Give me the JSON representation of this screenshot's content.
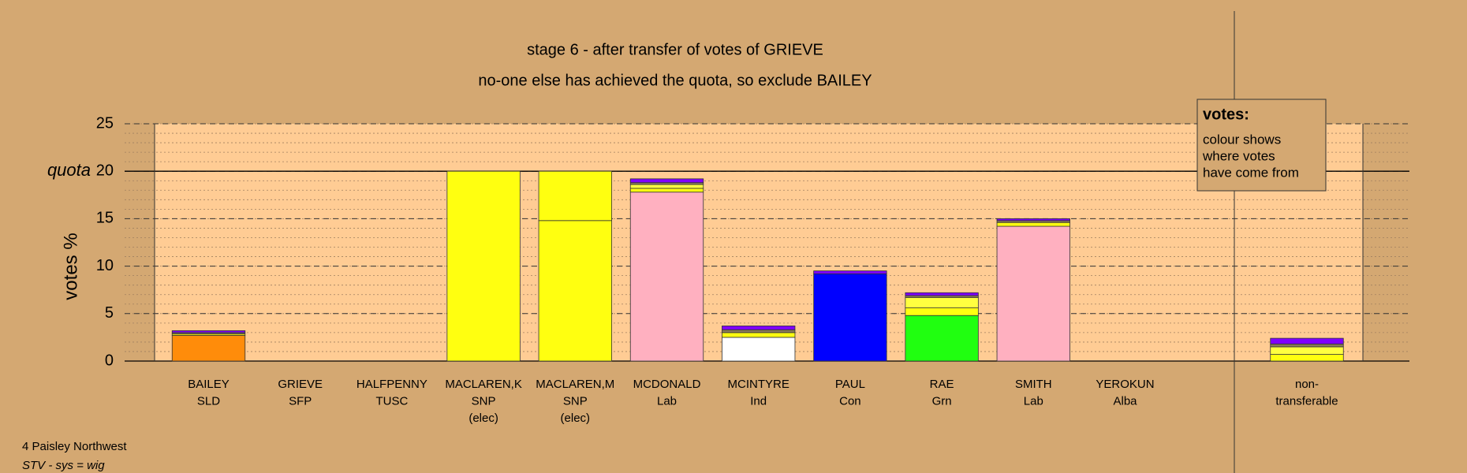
{
  "chart_data": {
    "type": "bar",
    "stacked": true,
    "title": "stage 6 - after transfer of votes of GRIEVE",
    "subtitle": "no-one else has achieved the quota, so exclude BAILEY",
    "y_label": "votes %",
    "quota": 20,
    "quota_label": "quota",
    "categories": [
      [
        "BAILEY",
        "SLD",
        null
      ],
      [
        "GRIEVE",
        "SFP",
        null
      ],
      [
        "HALFPENNY",
        "TUSC",
        null
      ],
      [
        "MACLAREN,K",
        "SNP",
        "(elec)"
      ],
      [
        "MACLAREN,M",
        "SNP",
        "(elec)"
      ],
      [
        "MCDONALD",
        "Lab",
        null
      ],
      [
        "MCINTYRE",
        "Ind",
        null
      ],
      [
        "PAUL",
        "Con",
        null
      ],
      [
        "RAE",
        "Grn",
        null
      ],
      [
        "SMITH",
        "Lab",
        null
      ],
      [
        "YEROKUN",
        "Alba",
        null
      ],
      [
        "non-",
        "transferable",
        null
      ]
    ],
    "series": [
      {
        "colors": [
          "#ff8c0a",
          "#a0a0a0",
          "#e02020",
          "#ffff10",
          "#ffff10",
          "#ffb0c0",
          "#ffffff",
          "#0000ff",
          "#20ff10",
          "#ffb0c0",
          "#8000ff",
          "#ffff10"
        ],
        "values": [
          2.7,
          0,
          0,
          20,
          14.8,
          17.8,
          2.5,
          9.2,
          4.8,
          14.2,
          0,
          0
        ]
      },
      {
        "color": "#ffff10",
        "values": [
          0.15,
          0,
          0,
          0,
          5.2,
          0.4,
          0.5,
          0,
          0.8,
          0.4,
          0,
          0.7
        ]
      },
      {
        "color": "#ffff40",
        "values": [
          0,
          0,
          0,
          0,
          0,
          0.4,
          0,
          0,
          1.1,
          0,
          0,
          0.8
        ]
      },
      {
        "color": "#8a7a5a",
        "values": [
          0.15,
          0,
          0,
          0,
          0,
          0.2,
          0.3,
          0,
          0.2,
          0.2,
          0,
          0.3
        ]
      },
      {
        "color": "#8000ff",
        "values": [
          0.2,
          0,
          0,
          0,
          0,
          0.4,
          0.4,
          0.3,
          0.3,
          0.2,
          0,
          0.6
        ]
      }
    ],
    "ylim": [
      0,
      25
    ],
    "yticks": [
      0,
      5,
      10,
      15,
      20,
      25
    ],
    "grid": true,
    "legend": {
      "title": "votes:",
      "lines": [
        "colour shows",
        "where votes",
        "have come from"
      ]
    },
    "footer": [
      "4 Paisley Northwest",
      "STV - sys = wig"
    ]
  }
}
